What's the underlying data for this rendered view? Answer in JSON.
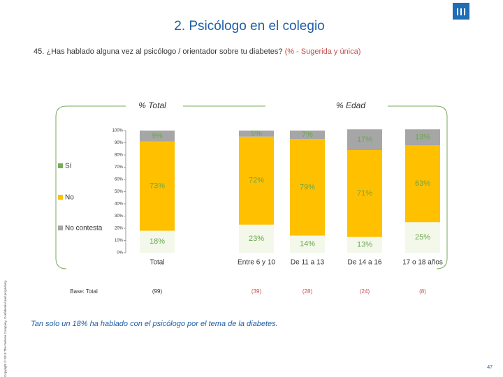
{
  "chart_data": {
    "type": "stacked_bar",
    "title": "2. Psicólogo en el colegio",
    "subtitle": "45. ¿Has hablado alguna vez al psicólogo / orientador sobre tu diabetes?",
    "subtitle_note": "(% - Sugerida y única)",
    "group_labels": [
      "% Total",
      "% Edad"
    ],
    "categories": [
      "Total",
      "Entre 6 y 10",
      "De 11 a 13",
      "De 14 a 16",
      "17 o 18 años"
    ],
    "series": [
      {
        "name": "Sí",
        "color": "#f3f8ea",
        "label_color": "#6aa84f",
        "values": [
          18,
          23,
          14,
          13,
          25
        ],
        "value_labels": [
          "18%",
          "23%",
          "14%",
          "13%",
          "25%"
        ]
      },
      {
        "name": "No",
        "color": "#ffc000",
        "label_color": "#6aa84f",
        "values": [
          73,
          72,
          79,
          71,
          63
        ],
        "value_labels": [
          "73%",
          "72%",
          "79%",
          "71%",
          "63%"
        ]
      },
      {
        "name": "No contesta",
        "color": "#a6a6a6",
        "label_color": "#6aa84f",
        "values": [
          9,
          5,
          7,
          17,
          13
        ],
        "value_labels": [
          "9%",
          "5%",
          "7%",
          "17%",
          "13%"
        ]
      }
    ],
    "base_label": "Base: Total",
    "bases": [
      "(99)",
      "(39)",
      "(28)",
      "(24)",
      "(8)"
    ],
    "ylim": [
      0,
      100
    ],
    "yticks": [
      {
        "value": 0,
        "label": "0%"
      },
      {
        "value": 10,
        "label": "10%"
      },
      {
        "value": 20,
        "label": "20%"
      },
      {
        "value": 30,
        "label": "30%"
      },
      {
        "value": 40,
        "label": "40%"
      },
      {
        "value": 50,
        "label": "50%"
      },
      {
        "value": 60,
        "label": "60%"
      },
      {
        "value": 70,
        "label": "70%"
      },
      {
        "value": 80,
        "label": "80%"
      },
      {
        "value": 90,
        "label": "90%"
      },
      {
        "value": 100,
        "label": "100%"
      }
    ],
    "footnote": "Tan solo un 18% ha hablado con el psicólogo por el tema de la diabetes.",
    "copyright": "Copyright © 2015 The Nielsen Company. Confidential and proprietary.",
    "page_number": "47"
  }
}
